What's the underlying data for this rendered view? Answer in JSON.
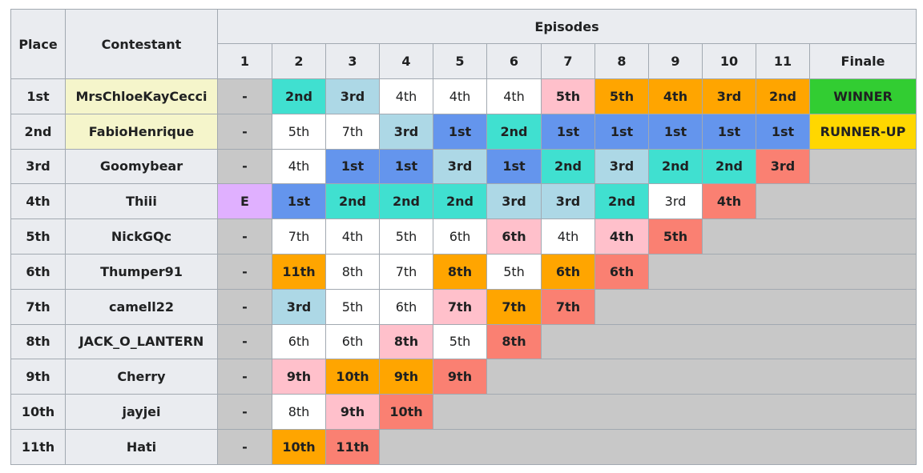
{
  "header": {
    "place": "Place",
    "contestant": "Contestant",
    "episodes": "Episodes",
    "columns": [
      "1",
      "2",
      "3",
      "4",
      "5",
      "6",
      "7",
      "8",
      "9",
      "10",
      "11",
      "Finale"
    ]
  },
  "rows": [
    {
      "place": "1st",
      "contestant": "MrsChloeKayCecci",
      "cells": [
        {
          "text": "-",
          "color": "#c8c8c8"
        },
        {
          "text": "2nd",
          "color": "#40e0d0"
        },
        {
          "text": "3rd",
          "color": "#add8e6"
        },
        {
          "text": "4th",
          "color": "#ffffff"
        },
        {
          "text": "4th",
          "color": "#ffffff"
        },
        {
          "text": "4th",
          "color": "#ffffff"
        },
        {
          "text": "5th",
          "color": "#ffc0cb"
        },
        {
          "text": "5th",
          "color": "#ffa500"
        },
        {
          "text": "4th",
          "color": "#ffa500"
        },
        {
          "text": "3rd",
          "color": "#ffa500"
        },
        {
          "text": "2nd",
          "color": "#ffa500"
        },
        {
          "text": "WINNER",
          "color": "#32cd32"
        }
      ]
    },
    {
      "place": "2nd",
      "contestant": "FabioHenrique",
      "cells": [
        {
          "text": "-",
          "color": "#c8c8c8"
        },
        {
          "text": "5th",
          "color": "#ffffff"
        },
        {
          "text": "7th",
          "color": "#ffffff"
        },
        {
          "text": "3rd",
          "color": "#add8e6"
        },
        {
          "text": "1st",
          "color": "#6495ed"
        },
        {
          "text": "2nd",
          "color": "#40e0d0"
        },
        {
          "text": "1st",
          "color": "#6495ed"
        },
        {
          "text": "1st",
          "color": "#6495ed"
        },
        {
          "text": "1st",
          "color": "#6495ed"
        },
        {
          "text": "1st",
          "color": "#6495ed"
        },
        {
          "text": "1st",
          "color": "#6495ed"
        },
        {
          "text": "RUNNER-UP",
          "color": "#ffd700"
        }
      ]
    },
    {
      "place": "3rd",
      "contestant": "Goomybear",
      "cells": [
        {
          "text": "-",
          "color": "#c8c8c8"
        },
        {
          "text": "4th",
          "color": "#ffffff"
        },
        {
          "text": "1st",
          "color": "#6495ed"
        },
        {
          "text": "1st",
          "color": "#6495ed"
        },
        {
          "text": "3rd",
          "color": "#add8e6"
        },
        {
          "text": "1st",
          "color": "#6495ed"
        },
        {
          "text": "2nd",
          "color": "#40e0d0"
        },
        {
          "text": "3rd",
          "color": "#add8e6"
        },
        {
          "text": "2nd",
          "color": "#40e0d0"
        },
        {
          "text": "2nd",
          "color": "#40e0d0"
        },
        {
          "text": "3rd",
          "color": "#fa8072"
        }
      ]
    },
    {
      "place": "4th",
      "contestant": "Thiii",
      "cells": [
        {
          "text": "E",
          "color": "#e0b0ff"
        },
        {
          "text": "1st",
          "color": "#6495ed"
        },
        {
          "text": "2nd",
          "color": "#40e0d0"
        },
        {
          "text": "2nd",
          "color": "#40e0d0"
        },
        {
          "text": "2nd",
          "color": "#40e0d0"
        },
        {
          "text": "3rd",
          "color": "#add8e6"
        },
        {
          "text": "3rd",
          "color": "#add8e6"
        },
        {
          "text": "2nd",
          "color": "#40e0d0"
        },
        {
          "text": "3rd",
          "color": "#ffffff"
        },
        {
          "text": "4th",
          "color": "#fa8072"
        }
      ]
    },
    {
      "place": "5th",
      "contestant": "NickGQc",
      "cells": [
        {
          "text": "-",
          "color": "#c8c8c8"
        },
        {
          "text": "7th",
          "color": "#ffffff"
        },
        {
          "text": "4th",
          "color": "#ffffff"
        },
        {
          "text": "5th",
          "color": "#ffffff"
        },
        {
          "text": "6th",
          "color": "#ffffff"
        },
        {
          "text": "6th",
          "color": "#ffc0cb"
        },
        {
          "text": "4th",
          "color": "#ffffff"
        },
        {
          "text": "4th",
          "color": "#ffc0cb"
        },
        {
          "text": "5th",
          "color": "#fa8072"
        }
      ]
    },
    {
      "place": "6th",
      "contestant": "Thumper91",
      "cells": [
        {
          "text": "-",
          "color": "#c8c8c8"
        },
        {
          "text": "11th",
          "color": "#ffa500"
        },
        {
          "text": "8th",
          "color": "#ffffff"
        },
        {
          "text": "7th",
          "color": "#ffffff"
        },
        {
          "text": "8th",
          "color": "#ffa500"
        },
        {
          "text": "5th",
          "color": "#ffffff"
        },
        {
          "text": "6th",
          "color": "#ffa500"
        },
        {
          "text": "6th",
          "color": "#fa8072"
        }
      ]
    },
    {
      "place": "7th",
      "contestant": "camell22",
      "cells": [
        {
          "text": "-",
          "color": "#c8c8c8"
        },
        {
          "text": "3rd",
          "color": "#add8e6"
        },
        {
          "text": "5th",
          "color": "#ffffff"
        },
        {
          "text": "6th",
          "color": "#ffffff"
        },
        {
          "text": "7th",
          "color": "#ffc0cb"
        },
        {
          "text": "7th",
          "color": "#ffa500"
        },
        {
          "text": "7th",
          "color": "#fa8072"
        }
      ]
    },
    {
      "place": "8th",
      "contestant": "JACK_O_LANTERN",
      "cells": [
        {
          "text": "-",
          "color": "#c8c8c8"
        },
        {
          "text": "6th",
          "color": "#ffffff"
        },
        {
          "text": "6th",
          "color": "#ffffff"
        },
        {
          "text": "8th",
          "color": "#ffc0cb"
        },
        {
          "text": "5th",
          "color": "#ffffff"
        },
        {
          "text": "8th",
          "color": "#fa8072"
        }
      ]
    },
    {
      "place": "9th",
      "contestant": "Cherry",
      "cells": [
        {
          "text": "-",
          "color": "#c8c8c8"
        },
        {
          "text": "9th",
          "color": "#ffc0cb"
        },
        {
          "text": "10th",
          "color": "#ffa500"
        },
        {
          "text": "9th",
          "color": "#ffa500"
        },
        {
          "text": "9th",
          "color": "#fa8072"
        }
      ]
    },
    {
      "place": "10th",
      "contestant": "jayjei",
      "cells": [
        {
          "text": "-",
          "color": "#c8c8c8"
        },
        {
          "text": "8th",
          "color": "#ffffff"
        },
        {
          "text": "9th",
          "color": "#ffc0cb"
        },
        {
          "text": "10th",
          "color": "#fa8072"
        }
      ]
    },
    {
      "place": "11th",
      "contestant": "Hati",
      "cells": [
        {
          "text": "-",
          "color": "#c8c8c8"
        },
        {
          "text": "10th",
          "color": "#ffa500"
        },
        {
          "text": "11th",
          "color": "#fa8072"
        }
      ]
    }
  ]
}
